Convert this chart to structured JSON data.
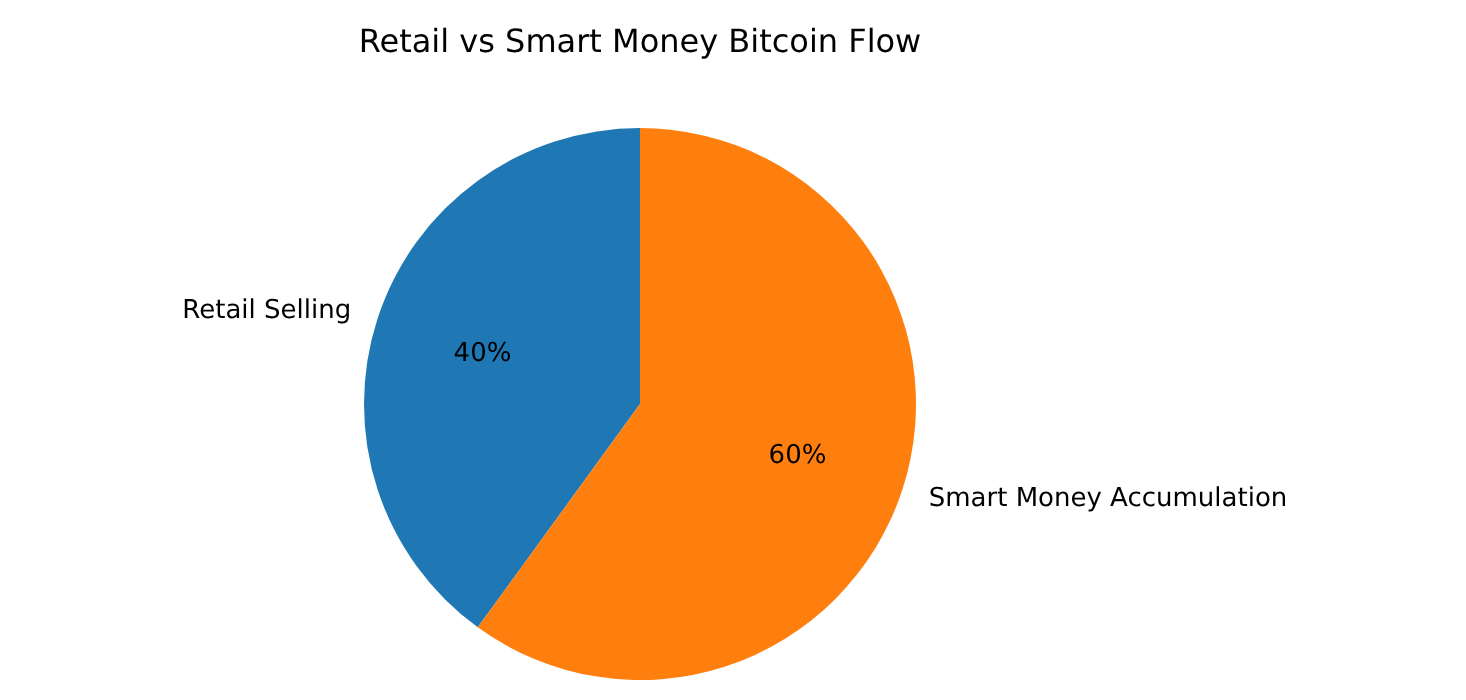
{
  "chart_data": {
    "type": "pie",
    "title": "Retail vs Smart Money Bitcoin Flow",
    "categories": [
      "Retail Selling",
      "Smart Money Accumulation"
    ],
    "values": [
      40,
      60
    ],
    "colors": [
      "#1f77b4",
      "#ff7f0e"
    ],
    "value_labels": [
      "40%",
      "60%"
    ]
  }
}
